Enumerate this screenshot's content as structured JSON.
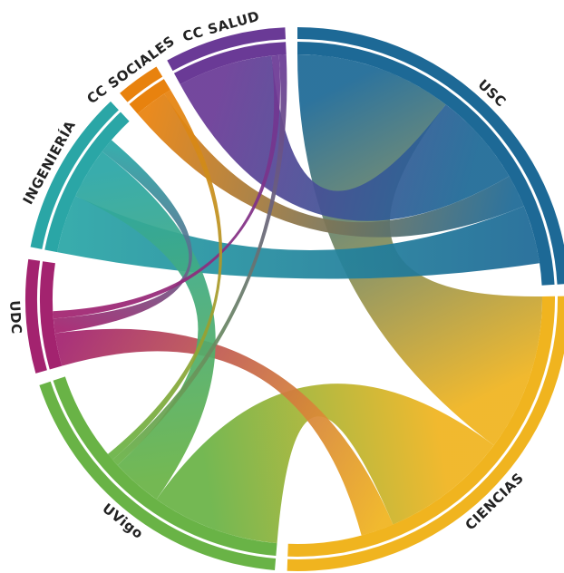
{
  "chart_data": {
    "type": "chord",
    "groups": [
      {
        "name": "USC",
        "value": 100,
        "color": "#1d6996"
      },
      {
        "name": "CIENCIAS",
        "value": 107,
        "color": "#f0b41f"
      },
      {
        "name": "UVigo",
        "value": 77,
        "color": "#69b346"
      },
      {
        "name": "UDC",
        "value": 28,
        "color": "#a3236f"
      },
      {
        "name": "INGENIERÍA",
        "value": 41,
        "color": "#2aa6a6"
      },
      {
        "name": "CC SOCIALES",
        "value": 11,
        "color": "#e8820e"
      },
      {
        "name": "CC SALUD",
        "value": 30,
        "color": "#6a3a96"
      }
    ],
    "flows": [
      {
        "source": "USC",
        "target": "CIENCIAS",
        "value": 43
      },
      {
        "source": "UVigo",
        "target": "CIENCIAS",
        "value": 35
      },
      {
        "source": "UDC",
        "target": "CIENCIAS",
        "value": 9
      },
      {
        "source": "CC SALUD",
        "target": "USC",
        "value": 26
      },
      {
        "source": "CC SOCIALES",
        "target": "USC",
        "value": 9
      },
      {
        "source": "INGENIERÍA",
        "target": "USC",
        "value": 16
      },
      {
        "source": "INGENIERÍA",
        "target": "UVigo",
        "value": 14
      },
      {
        "source": "INGENIERÍA",
        "target": "UDC",
        "value": 4
      },
      {
        "source": "CC SALUD",
        "target": "UDC",
        "value": 2
      },
      {
        "source": "CC SALUD",
        "target": "UVigo",
        "value": 2
      },
      {
        "source": "CC SOCIALES",
        "target": "UVigo",
        "value": 2
      }
    ]
  }
}
